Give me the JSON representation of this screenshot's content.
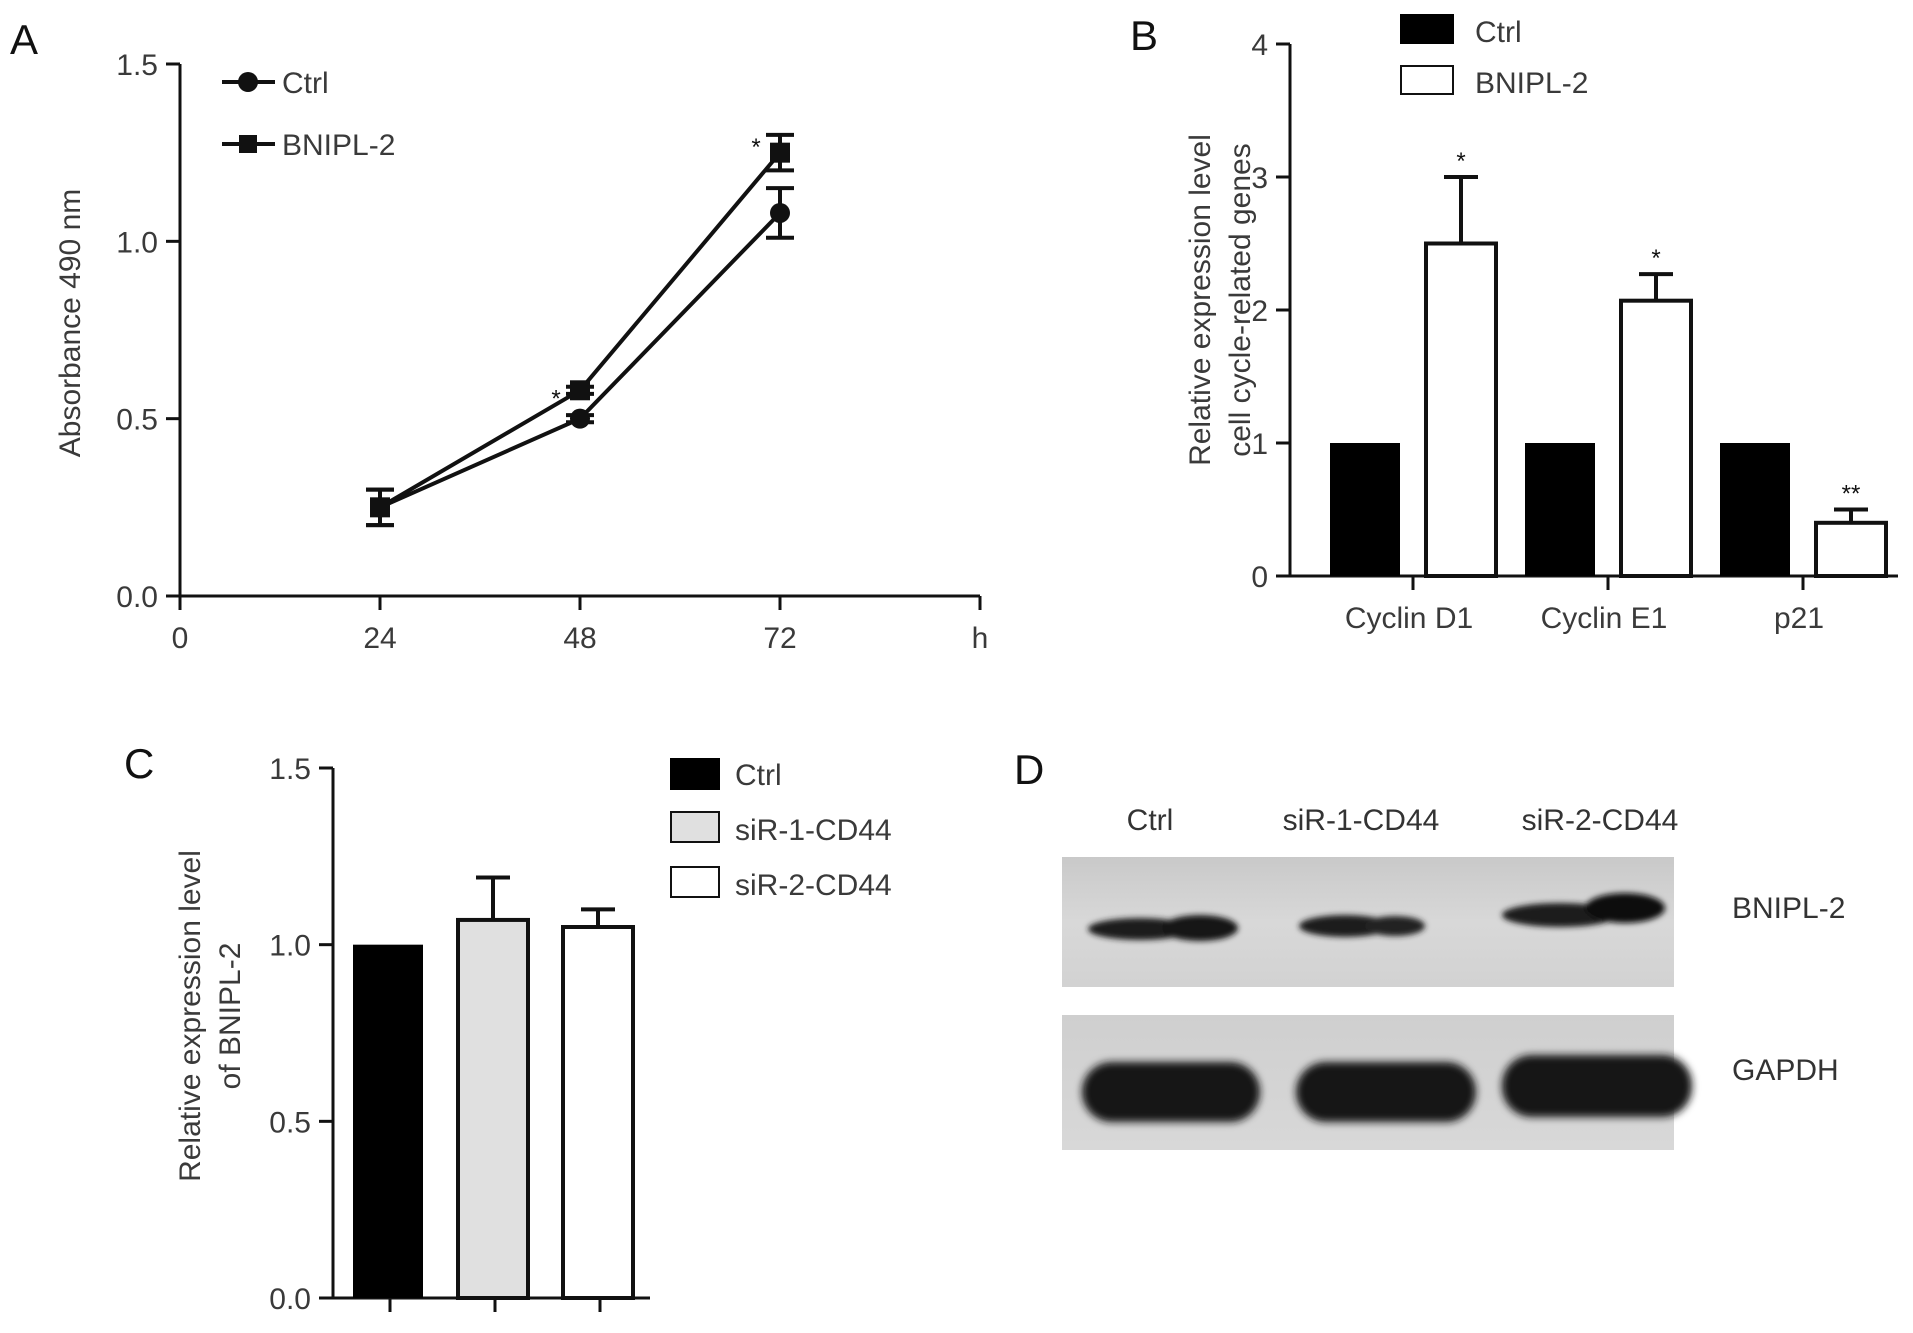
{
  "panels": {
    "A": {
      "label": "A"
    },
    "B": {
      "label": "B"
    },
    "C": {
      "label": "C"
    },
    "D": {
      "label": "D"
    }
  },
  "chart_data": [
    {
      "panel": "A",
      "type": "line",
      "xlabel": "h",
      "ylabel": "Absorbance 490 nm",
      "x": [
        24,
        48,
        72
      ],
      "xticks": [
        "0",
        "24",
        "48",
        "72",
        "h"
      ],
      "xlim": [
        0,
        96
      ],
      "yticks": [
        "0.0",
        "0.5",
        "1.0",
        "1.5"
      ],
      "ylim": [
        0,
        1.5
      ],
      "legend_position": "top-left",
      "series": [
        {
          "name": "Ctrl",
          "marker": "circle",
          "values": [
            0.25,
            0.5,
            1.08
          ],
          "errors": [
            0.05,
            0.01,
            0.07
          ]
        },
        {
          "name": "BNIPL-2",
          "marker": "square",
          "values": [
            0.25,
            0.58,
            1.25
          ],
          "errors": [
            0.05,
            0.01,
            0.05
          ]
        }
      ],
      "annotations": [
        {
          "x": 48,
          "text": "*"
        },
        {
          "x": 72,
          "text": "*"
        }
      ]
    },
    {
      "panel": "B",
      "type": "bar",
      "ylabel": [
        "Relative expression level",
        "cell cycle-related genes"
      ],
      "categories": [
        "Cyclin D1",
        "Cyclin E1",
        "p21"
      ],
      "yticks": [
        "0",
        "1",
        "2",
        "3",
        "4"
      ],
      "ylim": [
        0,
        4
      ],
      "legend_position": "top",
      "series": [
        {
          "name": "Ctrl",
          "fill": "#000000",
          "values": [
            1.0,
            1.0,
            1.0
          ],
          "errors": [
            0,
            0,
            0
          ]
        },
        {
          "name": "BNIPL-2",
          "fill": "#ffffff",
          "values": [
            2.5,
            2.07,
            0.4
          ],
          "errors": [
            0.5,
            0.2,
            0.1
          ]
        }
      ],
      "annotations": [
        "*",
        "*",
        "**"
      ]
    },
    {
      "panel": "C",
      "type": "bar",
      "ylabel": [
        "Relative expression level",
        "of BNIPL-2"
      ],
      "categories": [
        "",
        "",
        ""
      ],
      "yticks": [
        "0.0",
        "0.5",
        "1.0",
        "1.5"
      ],
      "ylim": [
        0,
        1.5
      ],
      "legend_position": "top-right",
      "series": [
        {
          "name": "Ctrl",
          "fill": "#000000",
          "value": 1.0,
          "error": 0
        },
        {
          "name": "siR-1-CD44",
          "fill": "#e0e0e0",
          "value": 1.07,
          "error": 0.12
        },
        {
          "name": "siR-2-CD44",
          "fill": "#ffffff",
          "value": 1.05,
          "error": 0.05
        }
      ]
    }
  ],
  "blot": {
    "lanes": [
      "Ctrl",
      "siR-1-CD44",
      "siR-2-CD44"
    ],
    "rows": [
      "BNIPL-2",
      "GAPDH"
    ]
  }
}
